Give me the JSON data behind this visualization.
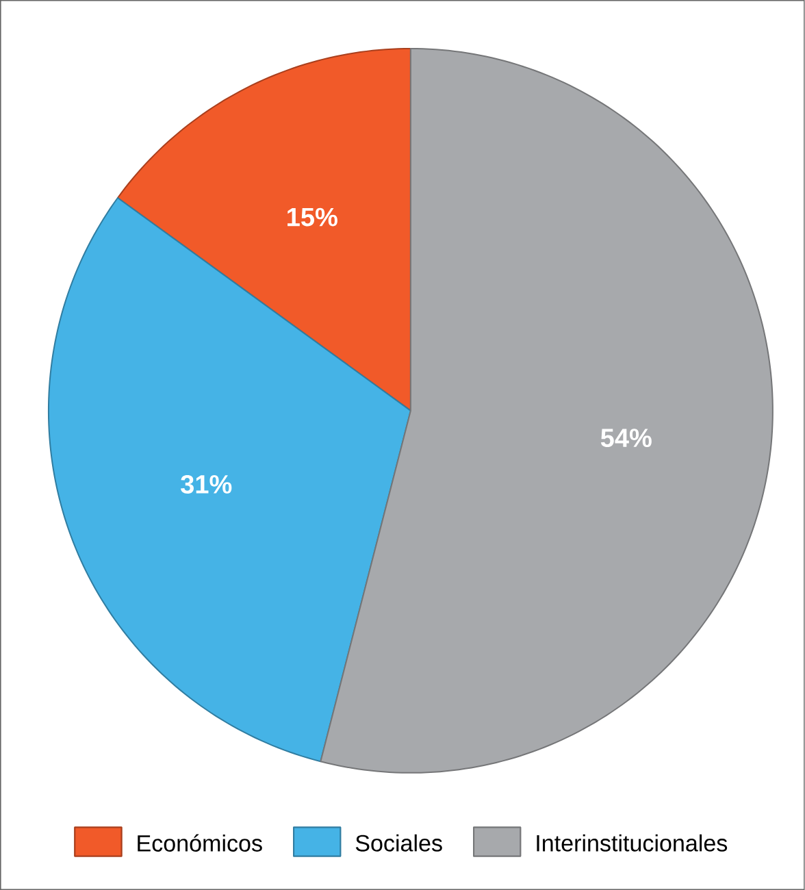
{
  "chart_data": {
    "type": "pie",
    "categories": [
      "Económicos",
      "Sociales",
      "Interinstitucionales"
    ],
    "values": [
      15,
      31,
      54
    ],
    "colors": [
      "#f15a29",
      "#45b3e6",
      "#a7a9ac"
    ],
    "value_labels": [
      "15%",
      "31%",
      "54%"
    ],
    "legend": "bottom"
  }
}
